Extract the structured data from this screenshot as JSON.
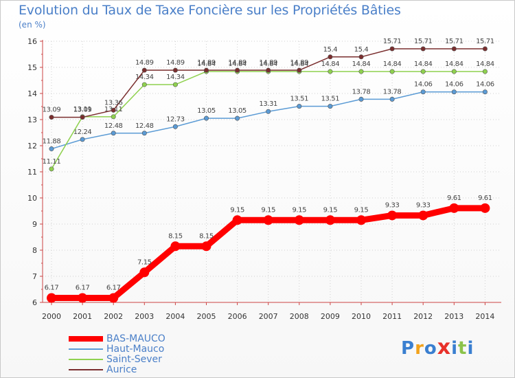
{
  "chart_data": {
    "type": "line",
    "title": "Evolution du Taux de Taxe Foncière sur les Propriétés Bâties",
    "ylabel": "(en %)",
    "xlabel": "",
    "ylim": [
      6,
      16
    ],
    "yticks": [
      "6",
      "7",
      "8",
      "9",
      "10",
      "11",
      "12",
      "13",
      "14",
      "15",
      "16"
    ],
    "categories": [
      "2000",
      "2001",
      "2002",
      "2003",
      "2004",
      "2005",
      "2006",
      "2007",
      "2008",
      "2009",
      "2010",
      "2011",
      "2012",
      "2013",
      "2014"
    ],
    "series": [
      {
        "name": "BAS-MAUCO",
        "color": "#ff0000",
        "values": [
          6.17,
          6.17,
          6.17,
          7.15,
          8.15,
          8.15,
          9.15,
          9.15,
          9.15,
          9.15,
          9.15,
          9.33,
          9.33,
          9.61,
          9.61
        ],
        "labels": [
          "6.17",
          "6.17",
          "6.17",
          "7.15",
          "8.15",
          "8.15",
          "9.15",
          "9.15",
          "9.15",
          "9.15",
          "9.15",
          "9.33",
          "9.33",
          "9.61",
          "9.61"
        ]
      },
      {
        "name": "Haut-Mauco",
        "color": "#5b9bd5",
        "values": [
          11.88,
          12.24,
          12.48,
          12.48,
          12.73,
          13.05,
          13.05,
          13.31,
          13.51,
          13.51,
          13.78,
          13.78,
          14.06,
          14.06,
          14.06
        ],
        "labels": [
          "11.88",
          "12.24",
          "12.48",
          "12.48",
          "12.73",
          "13.05",
          "13.05",
          "13.31",
          "13.51",
          "13.51",
          "13.78",
          "13.78",
          "14.06",
          "14.06",
          "14.06"
        ]
      },
      {
        "name": "Saint-Sever",
        "color": "#8fd14f",
        "values": [
          11.11,
          13.11,
          13.11,
          14.34,
          14.34,
          14.84,
          14.84,
          14.84,
          14.84,
          14.84,
          14.84,
          14.84,
          14.84,
          14.84,
          14.84
        ],
        "labels": [
          "11.11",
          "13.11",
          "13.11",
          "14.34",
          "14.34",
          "14.84",
          "14.84",
          "14.84",
          "14.84",
          "14.84",
          "14.84",
          "14.84",
          "14.84",
          "14.84",
          "14.84"
        ]
      },
      {
        "name": "Aurice",
        "color": "#7a2e2e",
        "values": [
          13.09,
          13.09,
          13.36,
          14.89,
          14.89,
          14.89,
          14.89,
          14.89,
          14.89,
          15.4,
          15.4,
          15.71,
          15.71,
          15.71,
          15.71
        ],
        "labels": [
          "13.09",
          "13.09",
          "13.36",
          "14.89",
          "14.89",
          "14.89",
          "14.89",
          "14.89",
          "14.89",
          "15.4",
          "15.4",
          "15.71",
          "15.71",
          "15.71",
          "15.71"
        ]
      }
    ]
  },
  "logo": {
    "letters": [
      "P",
      "r",
      "o",
      "x",
      "i",
      "t",
      "i"
    ]
  }
}
